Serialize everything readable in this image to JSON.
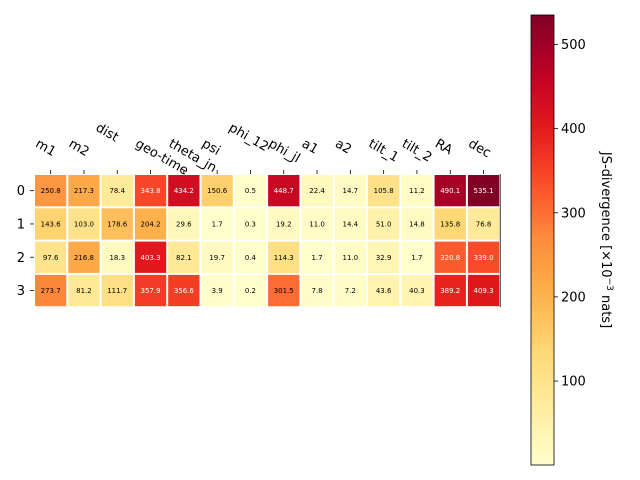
{
  "chart_data": {
    "type": "heatmap",
    "title": "",
    "columns": [
      "m1",
      "m2",
      "dist",
      "geo-time",
      "theta_jn",
      "psi",
      "phi_12",
      "phi_jl",
      "a1",
      "a2",
      "tilt_1",
      "tilt_2",
      "RA",
      "dec"
    ],
    "rows": [
      "0",
      "1",
      "2",
      "3"
    ],
    "values": [
      [
        250.8,
        217.3,
        78.4,
        343.8,
        434.2,
        150.6,
        0.5,
        448.7,
        22.4,
        14.7,
        105.8,
        11.2,
        490.1,
        535.1
      ],
      [
        143.6,
        103.0,
        178.6,
        204.2,
        29.6,
        1.7,
        0.3,
        19.2,
        11.0,
        14.4,
        51.0,
        14.8,
        135.8,
        76.8
      ],
      [
        97.6,
        216.8,
        18.3,
        403.3,
        82.1,
        19.7,
        0.4,
        114.3,
        1.7,
        11.0,
        32.9,
        1.7,
        320.8,
        339.0
      ],
      [
        273.7,
        81.2,
        111.7,
        357.9,
        356.6,
        3.9,
        0.2,
        301.5,
        7.8,
        7.2,
        43.6,
        40.3,
        389.2,
        409.3
      ]
    ],
    "value_labels": [
      [
        "250.8",
        "217.3",
        "78.4",
        "343.8",
        "434.2",
        "150.6",
        "0.5",
        "448.7",
        "22.4",
        "14.7",
        "105.8",
        "11.2",
        "490.1",
        "535.1"
      ],
      [
        "143.6",
        "103.0",
        "178.6",
        "204.2",
        "29.6",
        "1.7",
        "0.3",
        "19.2",
        "11.0",
        "14.4",
        "51.0",
        "14.8",
        "135.8",
        "76.8"
      ],
      [
        "97.6",
        "216.8",
        "18.3",
        "403.3",
        "82.1",
        "19.7",
        "0.4",
        "114.3",
        "1.7",
        "11.0",
        "32.9",
        "1.7",
        "320.8",
        "339.0"
      ],
      [
        "273.7",
        "81.2",
        "111.7",
        "357.9",
        "356.6",
        "3.9",
        "0.2",
        "301.5",
        "7.8",
        "7.2",
        "43.6",
        "40.3",
        "389.2",
        "409.3"
      ]
    ],
    "colormap": "YlOrRd",
    "vmin": 0.2,
    "vmax": 535.1,
    "colorbar": {
      "label": "JS-divergence [×10",
      "label_exponent": "−3",
      "label_suffix": " nats]",
      "ticks": [
        100,
        200,
        300,
        400,
        500
      ],
      "tick_labels": [
        "100",
        "200",
        "300",
        "400",
        "500"
      ]
    },
    "column_labels_position": "top-rotated"
  }
}
